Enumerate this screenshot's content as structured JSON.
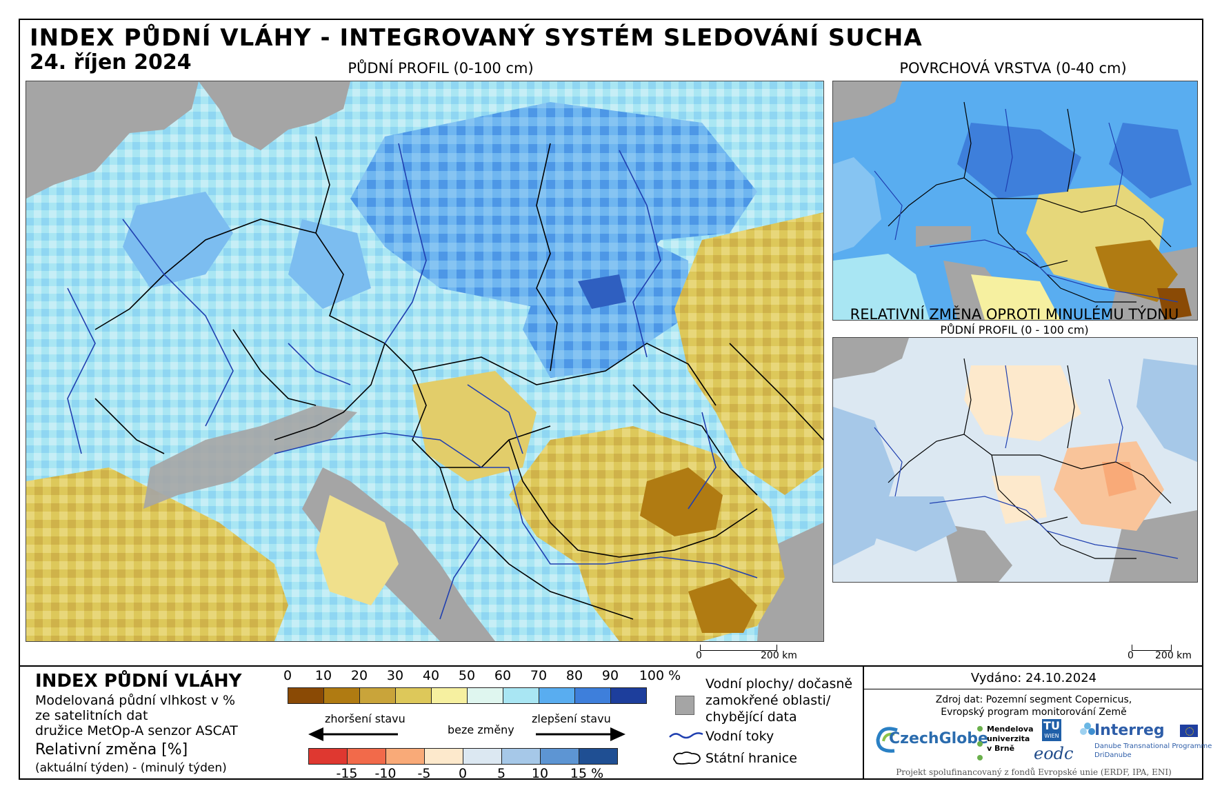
{
  "header": {
    "title": "INDEX PŮDNÍ VLÁHY - INTEGROVANÝ SYSTÉM SLEDOVÁNÍ SUCHA",
    "date": "24. říjen 2024"
  },
  "panels": {
    "main_title": "PŮDNÍ PROFIL (0-100 cm)",
    "surface_title": "POVRCHOVÁ VRSTVA (0-40 cm)",
    "change_title": "RELATIVNÍ ZMĚNA OPROTI MINULÉMU TÝDNU",
    "change_subtitle": "PŮDNÍ PROFIL (0 - 100 cm)"
  },
  "scalebar": {
    "main_zero": "0",
    "main_km": "200 km",
    "small_zero": "0",
    "small_km": "200 km"
  },
  "legend": {
    "title": "INDEX PŮDNÍ VLÁHY",
    "line1": "Modelovaná půdní vlhkost v %",
    "line2": "ze satelitních dat",
    "line3": "družice MetOp-A senzor ASCAT",
    "change_label": "Relativní změna [%]",
    "change_sub": "(aktuální týden) - (minulý týden)",
    "index_ticks": [
      "0",
      "10",
      "20",
      "30",
      "40",
      "50",
      "60",
      "70",
      "80",
      "90",
      "100 %"
    ],
    "index_colors": [
      "#8a4a05",
      "#b07b12",
      "#c9a43a",
      "#ddc85a",
      "#f6f0a0",
      "#dff6ef",
      "#a9e6f3",
      "#59adf0",
      "#3e7fdb",
      "#1d3e9c"
    ],
    "worse_label": "zhoršení stavu",
    "nochange_label": "beze změny",
    "better_label": "zlepšení stavu",
    "change_ticks": [
      "-15",
      "-10",
      "-5",
      "0",
      "5",
      "10",
      "15 %"
    ],
    "change_colors": [
      "#df3830",
      "#f26a4a",
      "#f9aa78",
      "#fde9cc",
      "#dce8f2",
      "#a6c8e8",
      "#5d95d3",
      "#1f4f93"
    ],
    "water_label_1": "Vodní plochy/ dočasně",
    "water_label_2": "zamokřené oblasti/",
    "water_label_3": "chybějící data",
    "rivers_label": "Vodní toky",
    "borders_label": "Státní hranice",
    "missing_color": "#a5a5a5",
    "river_color": "#1f3fb0"
  },
  "info": {
    "issued": "Vydáno: 24.10.2024",
    "source1": "Zdroj dat: Pozemní segment Copernicus,",
    "source2": "Evropský program monitorování Země",
    "logo_czechglobe": "CzechGlobe",
    "logo_mendel_1": "Mendelova",
    "logo_mendel_2": "univerzita",
    "logo_mendel_3": "v Brně",
    "logo_tu": "TU",
    "logo_wien": "WIEN",
    "logo_eodc": "eodc",
    "logo_interreg": "Interreg",
    "logo_danube_1": "Danube Transnational Programme",
    "logo_danube_2": "DriDanube",
    "footer": "Projekt spolufinancovaný z fondů Evropské unie (ERDF, IPA, ENI)"
  }
}
